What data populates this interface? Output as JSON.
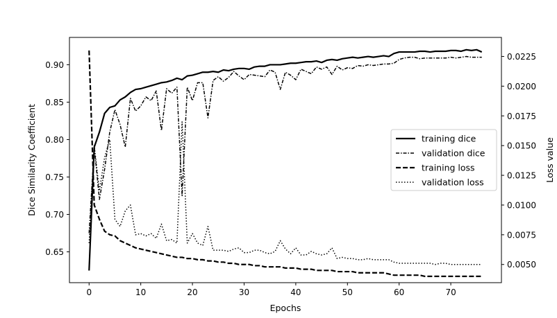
{
  "chart_data": {
    "type": "line",
    "xlabel": "Epochs",
    "ylabel_left": "Dice Similarity Coefficient",
    "ylabel_right": "Loss value",
    "xlim": [
      -3.8,
      79.8
    ],
    "ylim_left": [
      0.6088,
      0.9365
    ],
    "ylim_right": [
      0.00347,
      0.0241
    ],
    "xticks": [
      0,
      10,
      20,
      30,
      40,
      50,
      60,
      70
    ],
    "yticks_left": [
      0.65,
      0.7,
      0.75,
      0.8,
      0.85,
      0.9
    ],
    "yticks_right": [
      0.005,
      0.0075,
      0.01,
      0.0125,
      0.015,
      0.0175,
      0.02,
      0.0225
    ],
    "ytick_labels_left": [
      "0.65",
      "0.70",
      "0.75",
      "0.80",
      "0.85",
      "0.90"
    ],
    "ytick_labels_right": [
      "0.0050",
      "0.0075",
      "0.0100",
      "0.0125",
      "0.0150",
      "0.0175",
      "0.0200",
      "0.0225"
    ],
    "grid": false,
    "legend_position": "center-right",
    "x": [
      0,
      1,
      2,
      3,
      4,
      5,
      6,
      7,
      8,
      9,
      10,
      11,
      12,
      13,
      14,
      15,
      16,
      17,
      18,
      19,
      20,
      21,
      22,
      23,
      24,
      25,
      26,
      27,
      28,
      29,
      30,
      31,
      32,
      33,
      34,
      35,
      36,
      37,
      38,
      39,
      40,
      41,
      42,
      43,
      44,
      45,
      46,
      47,
      48,
      49,
      50,
      51,
      52,
      53,
      54,
      55,
      56,
      57,
      58,
      59,
      60,
      61,
      62,
      63,
      64,
      65,
      66,
      67,
      68,
      69,
      70,
      71,
      72,
      73,
      74,
      75,
      76
    ],
    "series": [
      {
        "name": "training dice",
        "axis": "left",
        "style": "solid",
        "width": 2.2,
        "values": [
          0.625,
          0.79,
          0.81,
          0.835,
          0.843,
          0.845,
          0.853,
          0.857,
          0.863,
          0.867,
          0.868,
          0.87,
          0.872,
          0.874,
          0.876,
          0.877,
          0.879,
          0.882,
          0.88,
          0.885,
          0.886,
          0.888,
          0.89,
          0.89,
          0.891,
          0.89,
          0.893,
          0.892,
          0.894,
          0.895,
          0.895,
          0.894,
          0.897,
          0.898,
          0.898,
          0.9,
          0.9,
          0.9,
          0.901,
          0.902,
          0.902,
          0.903,
          0.904,
          0.904,
          0.905,
          0.903,
          0.906,
          0.907,
          0.906,
          0.908,
          0.909,
          0.91,
          0.909,
          0.91,
          0.911,
          0.91,
          0.911,
          0.912,
          0.911,
          0.915,
          0.917,
          0.917,
          0.917,
          0.917,
          0.918,
          0.918,
          0.917,
          0.918,
          0.918,
          0.918,
          0.919,
          0.919,
          0.918,
          0.92,
          0.919,
          0.92,
          0.917
        ]
      },
      {
        "name": "validation dice",
        "axis": "left",
        "style": "dashdot",
        "width": 1.5,
        "values": [
          0.675,
          0.79,
          0.72,
          0.76,
          0.81,
          0.84,
          0.82,
          0.79,
          0.855,
          0.838,
          0.845,
          0.857,
          0.852,
          0.865,
          0.812,
          0.868,
          0.862,
          0.87,
          0.725,
          0.87,
          0.852,
          0.876,
          0.876,
          0.829,
          0.879,
          0.884,
          0.878,
          0.883,
          0.891,
          0.885,
          0.88,
          0.887,
          0.886,
          0.885,
          0.884,
          0.893,
          0.89,
          0.867,
          0.89,
          0.886,
          0.88,
          0.894,
          0.891,
          0.888,
          0.897,
          0.894,
          0.897,
          0.887,
          0.898,
          0.893,
          0.896,
          0.895,
          0.899,
          0.898,
          0.9,
          0.899,
          0.9,
          0.901,
          0.901,
          0.902,
          0.907,
          0.909,
          0.91,
          0.91,
          0.908,
          0.909,
          0.909,
          0.909,
          0.909,
          0.909,
          0.91,
          0.909,
          0.91,
          0.911,
          0.91,
          0.91,
          0.91
        ]
      },
      {
        "name": "training loss",
        "axis": "right",
        "style": "dashed",
        "width": 2.2,
        "values": [
          0.023,
          0.01,
          0.0088,
          0.0078,
          0.0075,
          0.0074,
          0.007,
          0.0068,
          0.0066,
          0.0064,
          0.0063,
          0.0062,
          0.0061,
          0.006,
          0.0059,
          0.0058,
          0.0057,
          0.0056,
          0.0056,
          0.0055,
          0.0055,
          0.0054,
          0.0054,
          0.0053,
          0.0053,
          0.0052,
          0.0052,
          0.0051,
          0.0051,
          0.005,
          0.005,
          0.005,
          0.0049,
          0.0049,
          0.0048,
          0.0048,
          0.0048,
          0.0048,
          0.0047,
          0.0047,
          0.0047,
          0.0046,
          0.0046,
          0.0046,
          0.0045,
          0.0045,
          0.0045,
          0.0045,
          0.0044,
          0.0044,
          0.0044,
          0.0044,
          0.0043,
          0.0043,
          0.0043,
          0.0043,
          0.0043,
          0.0043,
          0.0042,
          0.0041,
          0.0041,
          0.0041,
          0.0041,
          0.0041,
          0.0041,
          0.004,
          0.004,
          0.004,
          0.004,
          0.004,
          0.004,
          0.004,
          0.004,
          0.004,
          0.004,
          0.004,
          0.004
        ]
      },
      {
        "name": "validation loss",
        "axis": "right",
        "style": "dotted",
        "width": 1.5,
        "values": [
          0.0068,
          0.015,
          0.0112,
          0.014,
          0.0155,
          0.0088,
          0.0082,
          0.0095,
          0.01,
          0.0075,
          0.0076,
          0.0074,
          0.0076,
          0.0072,
          0.0084,
          0.007,
          0.0071,
          0.0068,
          0.017,
          0.0068,
          0.0076,
          0.0068,
          0.0066,
          0.0082,
          0.0062,
          0.0062,
          0.0062,
          0.0061,
          0.0063,
          0.0064,
          0.006,
          0.006,
          0.0062,
          0.0062,
          0.006,
          0.0059,
          0.0061,
          0.007,
          0.0063,
          0.0059,
          0.0064,
          0.0058,
          0.0058,
          0.0061,
          0.0059,
          0.0058,
          0.0059,
          0.0064,
          0.0055,
          0.0056,
          0.0055,
          0.0055,
          0.0054,
          0.0054,
          0.0055,
          0.0054,
          0.0054,
          0.0054,
          0.0054,
          0.0052,
          0.0051,
          0.0051,
          0.0051,
          0.0051,
          0.0051,
          0.0051,
          0.0051,
          0.005,
          0.0051,
          0.0051,
          0.005,
          0.005,
          0.005,
          0.005,
          0.005,
          0.005,
          0.005
        ]
      }
    ]
  }
}
